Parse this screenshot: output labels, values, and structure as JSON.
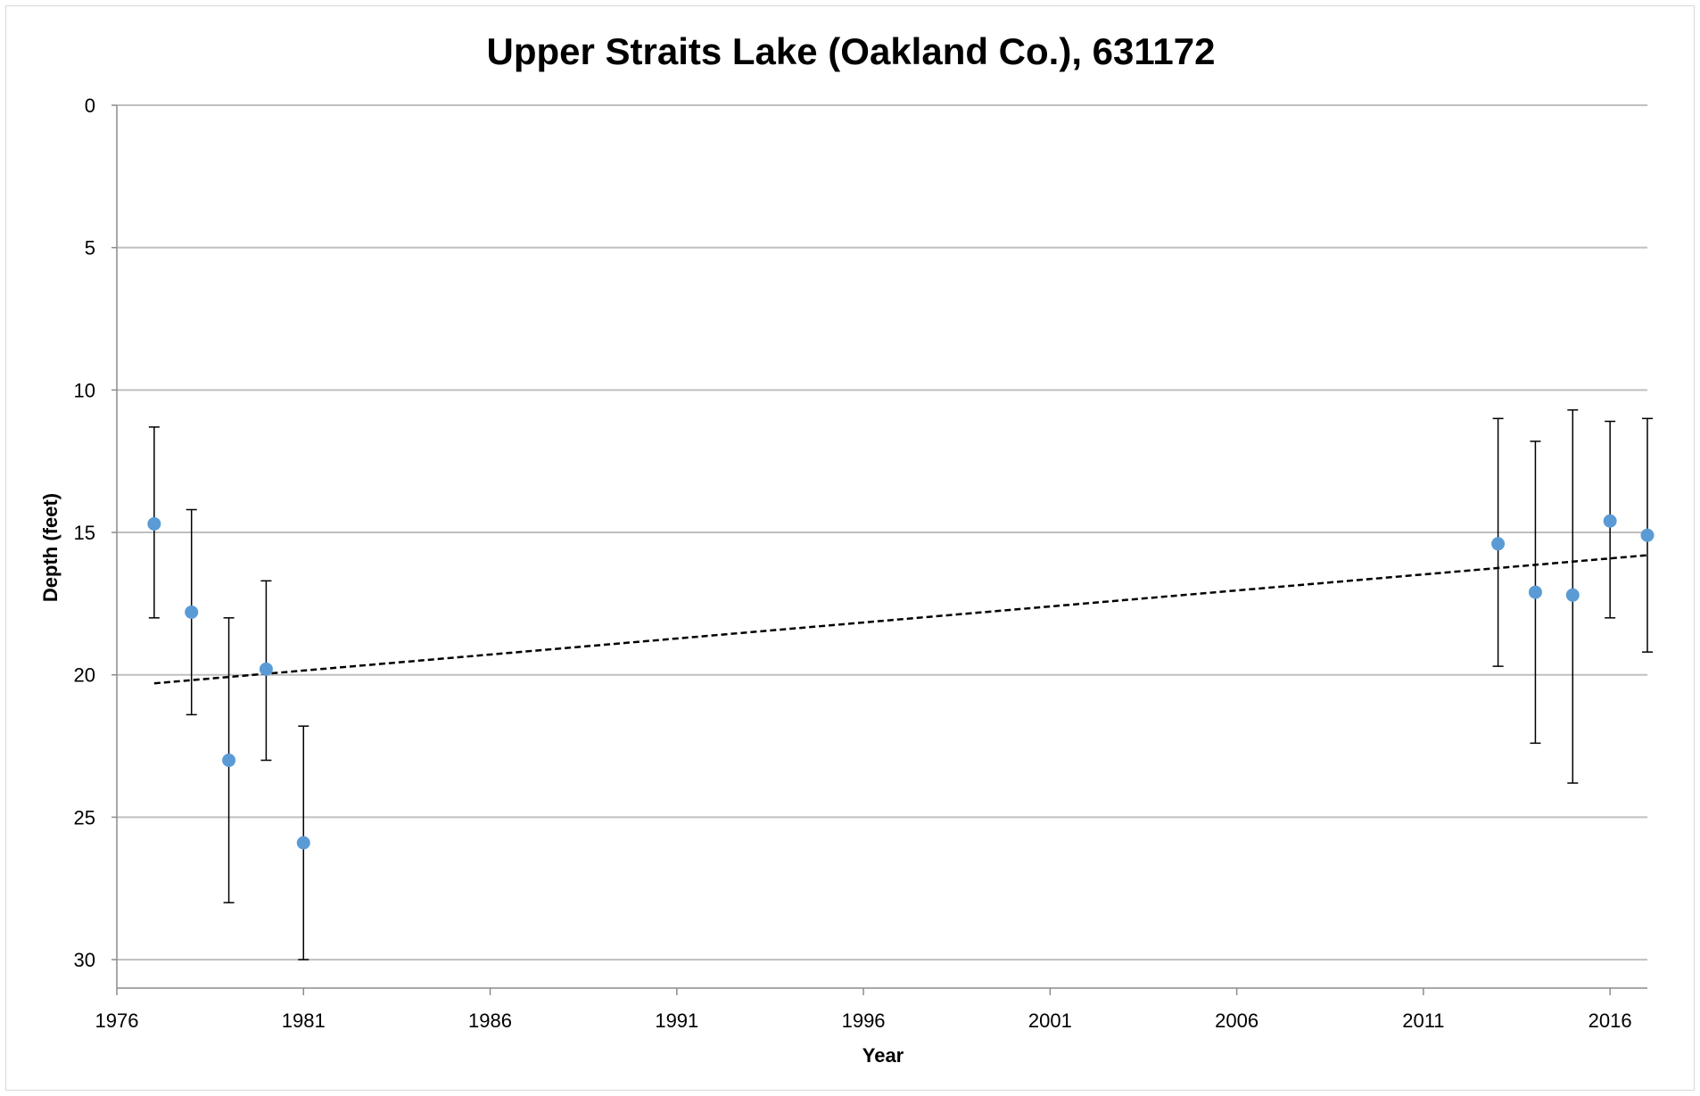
{
  "chart_data": {
    "type": "scatter",
    "title": "Upper Straits Lake (Oakland Co.), 631172",
    "xlabel": "Year",
    "ylabel": "Depth (feet)",
    "xlim": [
      1976,
      2017
    ],
    "ylim": [
      0,
      31
    ],
    "y_inverted": true,
    "grid": "horizontal",
    "legend": "none",
    "x_ticks": [
      1976,
      1981,
      1986,
      1991,
      1996,
      2001,
      2006,
      2011,
      2016
    ],
    "y_ticks": [
      0,
      5,
      10,
      15,
      20,
      25,
      30
    ],
    "marker_color": "#5b9bd5",
    "gridline_color": "#bfbfbf",
    "trendline_color": "#000000",
    "series": [
      {
        "points": [
          {
            "x": 1977,
            "y": 14.7,
            "low": 11.3,
            "high": 18.0
          },
          {
            "x": 1978,
            "y": 17.8,
            "low": 14.2,
            "high": 21.4
          },
          {
            "x": 1979,
            "y": 23.0,
            "low": 18.0,
            "high": 28.0
          },
          {
            "x": 1980,
            "y": 19.8,
            "low": 16.7,
            "high": 23.0
          },
          {
            "x": 1981,
            "y": 25.9,
            "low": 21.8,
            "high": 30.0
          },
          {
            "x": 2013,
            "y": 15.4,
            "low": 11.0,
            "high": 19.7
          },
          {
            "x": 2014,
            "y": 17.1,
            "low": 11.8,
            "high": 22.4
          },
          {
            "x": 2015,
            "y": 17.2,
            "low": 10.7,
            "high": 23.8
          },
          {
            "x": 2016,
            "y": 14.6,
            "low": 11.1,
            "high": 18.0
          },
          {
            "x": 2017,
            "y": 15.1,
            "low": 11.0,
            "high": 19.2
          }
        ]
      }
    ],
    "trendline": {
      "style": "dashed",
      "x": [
        1977,
        2017
      ],
      "y": [
        20.3,
        15.8
      ]
    }
  }
}
